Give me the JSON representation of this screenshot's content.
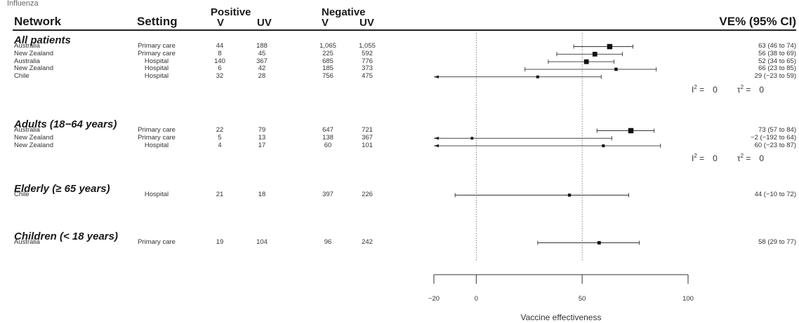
{
  "top_label": "Influenza",
  "headers": {
    "network": "Network",
    "setting": "Setting",
    "positive": "Positive",
    "negative": "Negative",
    "v": "V",
    "uv": "UV",
    "ve": "VE% (95% CI)"
  },
  "heterogeneity": {
    "i2_label": "I",
    "tau2_label": "τ",
    "sup": "2",
    "equals": " =",
    "i2_value": "0",
    "tau2_value": "0"
  },
  "chart_data": {
    "type": "forest",
    "xlabel": "Vaccine effectiveness",
    "xlim": [
      -20,
      100
    ],
    "xticks": [
      -20,
      0,
      50,
      100
    ],
    "reference_lines": [
      0,
      50
    ],
    "groups": [
      {
        "label": "All patients",
        "show_heterogeneity": true,
        "rows": [
          {
            "network": "Australia",
            "setting": "Primary care",
            "pos_v": "44",
            "pos_uv": "188",
            "neg_v": "1,065",
            "neg_uv": "1,055",
            "ve": 63,
            "lo": 46,
            "hi": 74,
            "ve_text": "63 (46 to 74)",
            "weight": 1.0
          },
          {
            "network": "New Zealand",
            "setting": "Primary care",
            "pos_v": "8",
            "pos_uv": "45",
            "neg_v": "225",
            "neg_uv": "592",
            "ve": 56,
            "lo": 38,
            "hi": 69,
            "ve_text": "56 (38 to 69)",
            "weight": 0.85
          },
          {
            "network": "Australia",
            "setting": "Hospital",
            "pos_v": "140",
            "pos_uv": "367",
            "neg_v": "685",
            "neg_uv": "776",
            "ve": 52,
            "lo": 34,
            "hi": 65,
            "ve_text": "52 (34 to 65)",
            "weight": 0.85
          },
          {
            "network": "New Zealand",
            "setting": "Hospital",
            "pos_v": "6",
            "pos_uv": "42",
            "neg_v": "185",
            "neg_uv": "373",
            "ve": 66,
            "lo": 23,
            "hi": 85,
            "ve_text": "66 (23 to 85)",
            "weight": 0.45
          },
          {
            "network": "Chile",
            "setting": "Hospital",
            "pos_v": "32",
            "pos_uv": "28",
            "neg_v": "756",
            "neg_uv": "475",
            "ve": 29,
            "lo": -23,
            "hi": 59,
            "ve_text": "29 (−23 to 59)",
            "weight": 0.35
          }
        ]
      },
      {
        "label": "Adults (18−64 years)",
        "show_heterogeneity": true,
        "rows": [
          {
            "network": "Australia",
            "setting": "Primary care",
            "pos_v": "22",
            "pos_uv": "79",
            "neg_v": "647",
            "neg_uv": "721",
            "ve": 73,
            "lo": 57,
            "hi": 84,
            "ve_text": "73 (57 to 84)",
            "weight": 1.0
          },
          {
            "network": "New Zealand",
            "setting": "Primary care",
            "pos_v": "5",
            "pos_uv": "13",
            "neg_v": "138",
            "neg_uv": "367",
            "ve": -2,
            "lo": -192,
            "hi": 64,
            "ve_text": "−2 (−192 to 64)",
            "weight": 0.3
          },
          {
            "network": "New Zealand",
            "setting": "Hospital",
            "pos_v": "4",
            "pos_uv": "17",
            "neg_v": "60",
            "neg_uv": "101",
            "ve": 60,
            "lo": -23,
            "hi": 87,
            "ve_text": "60 (−23 to 87)",
            "weight": 0.35
          }
        ]
      },
      {
        "label": "Elderly (≥ 65 years)",
        "show_heterogeneity": false,
        "rows": [
          {
            "network": "Chile",
            "setting": "Hospital",
            "pos_v": "21",
            "pos_uv": "18",
            "neg_v": "397",
            "neg_uv": "226",
            "ve": 44,
            "lo": -10,
            "hi": 72,
            "ve_text": "44 (−10 to 72)",
            "weight": 0.4
          }
        ]
      },
      {
        "label": "Children (< 18 years)",
        "show_heterogeneity": false,
        "rows": [
          {
            "network": "Australia",
            "setting": "Primary care",
            "pos_v": "19",
            "pos_uv": "104",
            "neg_v": "96",
            "neg_uv": "242",
            "ve": 58,
            "lo": 29,
            "hi": 77,
            "ve_text": "58 (29 to 77)",
            "weight": 0.5
          }
        ]
      }
    ]
  }
}
